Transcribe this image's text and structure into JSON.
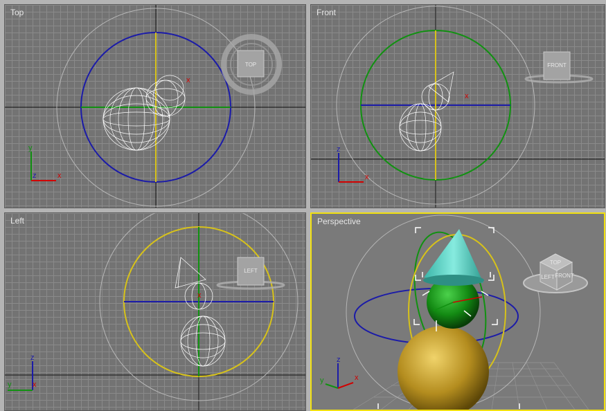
{
  "viewports": {
    "top": {
      "label": "Top",
      "cube_label": "TOP",
      "axis_x": "x",
      "axis_y": "y",
      "axis_z": "z"
    },
    "front": {
      "label": "Front",
      "cube_label": "FRONT",
      "axis_x": "x",
      "axis_z": "z"
    },
    "left": {
      "label": "Left",
      "cube_label": "LEFT",
      "axis_y": "y",
      "axis_z": "z"
    },
    "perspective": {
      "label": "Perspective",
      "cube_face_top": "TOP",
      "cube_face_left": "LEFT",
      "cube_face_front": "FRONT",
      "axis_x": "x",
      "axis_y": "y",
      "axis_z": "z"
    }
  },
  "active_viewport": "perspective",
  "colors": {
    "viewport_bg": "#737373",
    "grid": "#8a8a8a",
    "active_border": "#f2e10f",
    "gizmo_blue": "#1b1ba8",
    "gizmo_green": "#119111",
    "gizmo_yellow": "#d7c21a",
    "axis_red": "#d10000",
    "cone": "#5fd6c9",
    "sphere_small": "#1a8a1a",
    "sphere_large": "#c8a22a"
  }
}
